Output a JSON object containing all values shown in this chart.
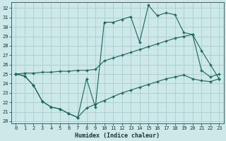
{
  "xlabel": "Humidex (Indice chaleur)",
  "bg_color": "#cce8e8",
  "grid_color": "#aacccc",
  "line_color": "#1a6655",
  "xlim": [
    -0.5,
    23.5
  ],
  "ylim": [
    19.8,
    32.6
  ],
  "xticks": [
    0,
    1,
    2,
    3,
    4,
    5,
    6,
    7,
    8,
    9,
    10,
    11,
    12,
    13,
    14,
    15,
    16,
    17,
    18,
    19,
    20,
    21,
    22,
    23
  ],
  "yticks": [
    20,
    21,
    22,
    23,
    24,
    25,
    26,
    27,
    28,
    29,
    30,
    31,
    32
  ],
  "curve_top_x": [
    0,
    1,
    2,
    3,
    4,
    5,
    6,
    7,
    8,
    9,
    10,
    11,
    12,
    13,
    14,
    15,
    16,
    17,
    18,
    19,
    20,
    21,
    22,
    23
  ],
  "curve_top_y": [
    25.0,
    24.8,
    23.8,
    22.1,
    21.5,
    21.3,
    20.8,
    20.4,
    24.5,
    21.5,
    30.5,
    30.5,
    30.8,
    31.1,
    28.4,
    32.3,
    31.2,
    31.5,
    31.3,
    29.4,
    29.2,
    25.4,
    24.7,
    25.0
  ],
  "curve_mid_x": [
    0,
    1,
    2,
    3,
    4,
    5,
    6,
    7,
    8,
    9,
    10,
    11,
    12,
    13,
    14,
    15,
    16,
    17,
    18,
    19,
    20,
    21,
    22,
    23
  ],
  "curve_mid_y": [
    25.0,
    25.1,
    25.1,
    25.2,
    25.2,
    25.3,
    25.3,
    25.4,
    25.4,
    25.5,
    26.4,
    26.7,
    27.0,
    27.3,
    27.6,
    27.9,
    28.2,
    28.5,
    28.8,
    29.0,
    29.2,
    27.5,
    26.0,
    24.5
  ],
  "curve_bot_x": [
    0,
    1,
    2,
    3,
    4,
    5,
    6,
    7,
    8,
    9,
    10,
    11,
    12,
    13,
    14,
    15,
    16,
    17,
    18,
    19,
    20,
    21,
    22,
    23
  ],
  "curve_bot_y": [
    25.0,
    24.8,
    23.8,
    22.1,
    21.5,
    21.3,
    20.8,
    20.4,
    21.4,
    21.8,
    22.2,
    22.6,
    23.0,
    23.3,
    23.6,
    23.9,
    24.2,
    24.5,
    24.7,
    24.9,
    24.5,
    24.3,
    24.2,
    24.5
  ]
}
